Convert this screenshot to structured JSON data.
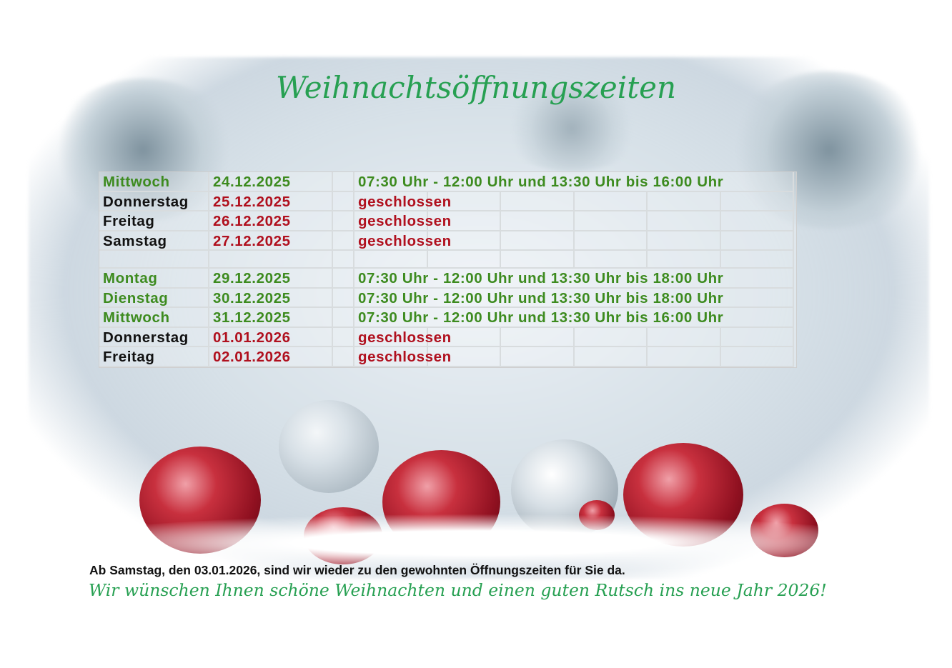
{
  "title": "Weihnachtsöffnungszeiten",
  "schedule": [
    {
      "day": "Mittwoch",
      "date": "24.12.2025",
      "status": "open",
      "hours": "07:30 Uhr - 12:00 Uhr und 13:30 Uhr bis 16:00 Uhr"
    },
    {
      "day": "Donnerstag",
      "date": "25.12.2025",
      "status": "closed",
      "hours": "geschlossen"
    },
    {
      "day": "Freitag",
      "date": "26.12.2025",
      "status": "closed",
      "hours": "geschlossen"
    },
    {
      "day": "Samstag",
      "date": "27.12.2025",
      "status": "closed",
      "hours": "geschlossen"
    },
    {
      "spacer": true
    },
    {
      "day": "Montag",
      "date": "29.12.2025",
      "status": "open",
      "hours": "07:30 Uhr - 12:00 Uhr und 13:30 Uhr bis 18:00 Uhr"
    },
    {
      "day": "Dienstag",
      "date": "30.12.2025",
      "status": "open",
      "hours": "07:30 Uhr - 12:00 Uhr und 13:30 Uhr bis 18:00 Uhr"
    },
    {
      "day": "Mittwoch",
      "date": "31.12.2025",
      "status": "open",
      "hours": "07:30 Uhr - 12:00 Uhr und 13:30 Uhr bis 16:00 Uhr"
    },
    {
      "day": "Donnerstag",
      "date": "01.01.2026",
      "status": "closed",
      "hours": "geschlossen"
    },
    {
      "day": "Freitag",
      "date": "02.01.2026",
      "status": "closed",
      "hours": "geschlossen"
    }
  ],
  "note": "Ab Samstag, den 03.01.2026, sind wir wieder zu den gewohnten Öffnungszeiten für Sie da.",
  "wish": "Wir wünschen Ihnen schöne Weihnachten und einen guten Rutsch ins neue Jahr 2026!",
  "colors": {
    "open": "#3d8b1f",
    "closed": "#b0101e",
    "title": "#27a052"
  }
}
